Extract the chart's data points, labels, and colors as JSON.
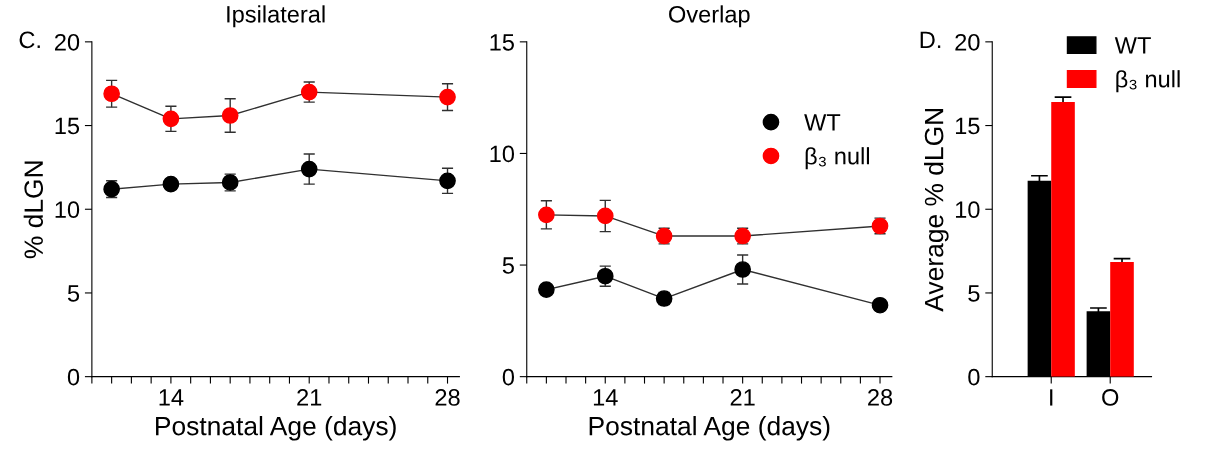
{
  "chart_data": [
    {
      "type": "line",
      "title": "Ipsilateral",
      "xlabel": "Postnatal Age (days)",
      "ylabel": "% dLGN",
      "annotations": [
        "C."
      ],
      "x": [
        11,
        14,
        17,
        21,
        28
      ],
      "xlim": [
        10,
        28.6
      ],
      "ylim": [
        0,
        20
      ],
      "yticks": [
        0,
        5,
        10,
        15,
        20
      ],
      "xticks": [
        {
          "value": 10,
          "label": null
        },
        {
          "value": 11,
          "label": null
        },
        {
          "value": 12,
          "label": null
        },
        {
          "value": 13,
          "label": null
        },
        14,
        {
          "value": 15,
          "label": null
        },
        {
          "value": 16,
          "label": null
        },
        {
          "value": 17,
          "label": null
        },
        {
          "value": 18,
          "label": null
        },
        {
          "value": 19,
          "label": null
        },
        {
          "value": 20,
          "label": null
        },
        21,
        {
          "value": 22,
          "label": null
        },
        {
          "value": 23,
          "label": null
        },
        {
          "value": 24,
          "label": null
        },
        {
          "value": 25,
          "label": null
        },
        {
          "value": 26,
          "label": null
        },
        {
          "value": 27,
          "label": null
        },
        28
      ],
      "marker": "circle",
      "grid": false,
      "legend": false,
      "series": [
        {
          "color": "#000000",
          "values": [
            11.2,
            11.5,
            11.6,
            12.4,
            11.7
          ],
          "errors": [
            0.5,
            0.3,
            0.5,
            0.9,
            0.75
          ]
        },
        {
          "color": "#ff0000",
          "values": [
            16.9,
            15.4,
            15.6,
            17.0,
            16.7
          ],
          "errors": [
            0.8,
            0.75,
            1.0,
            0.6,
            0.8
          ]
        }
      ]
    },
    {
      "type": "line",
      "title": "Overlap",
      "xlabel": "Postnatal Age (days)",
      "x": [
        11,
        14,
        17,
        21,
        28
      ],
      "xlim": [
        10,
        28.6
      ],
      "ylim": [
        0,
        15
      ],
      "yticks": [
        0,
        5,
        10,
        15
      ],
      "xticks": [
        {
          "value": 10,
          "label": null
        },
        {
          "value": 11,
          "label": null
        },
        {
          "value": 12,
          "label": null
        },
        {
          "value": 13,
          "label": null
        },
        14,
        {
          "value": 15,
          "label": null
        },
        {
          "value": 16,
          "label": null
        },
        {
          "value": 17,
          "label": null
        },
        {
          "value": 18,
          "label": null
        },
        {
          "value": 19,
          "label": null
        },
        {
          "value": 20,
          "label": null
        },
        21,
        {
          "value": 22,
          "label": null
        },
        {
          "value": 23,
          "label": null
        },
        {
          "value": 24,
          "label": null
        },
        {
          "value": 25,
          "label": null
        },
        {
          "value": 26,
          "label": null
        },
        {
          "value": 27,
          "label": null
        },
        28
      ],
      "marker": "circle",
      "grid": false,
      "legend": "top right",
      "series": [
        {
          "name": "WT",
          "color": "#000000",
          "values": [
            3.9,
            4.5,
            3.5,
            4.8,
            3.2
          ],
          "errors": [
            0.2,
            0.45,
            0.27,
            0.65,
            0.15
          ]
        },
        {
          "name": "β₃ null",
          "color": "#ff0000",
          "values": [
            7.25,
            7.2,
            6.3,
            6.3,
            6.75
          ],
          "errors": [
            0.63,
            0.7,
            0.35,
            0.35,
            0.35
          ]
        }
      ]
    },
    {
      "type": "bar",
      "ylabel": "Average % dLGN",
      "annotations": [
        "D."
      ],
      "categories": [
        "I",
        "O"
      ],
      "ylim": [
        0,
        20
      ],
      "yticks": [
        0,
        5,
        10,
        15,
        20
      ],
      "grid": false,
      "legend": "top right",
      "series": [
        {
          "name": "WT",
          "color": "#000000",
          "values": [
            11.7,
            3.9
          ],
          "errors": [
            0.3,
            0.2
          ]
        },
        {
          "name": "β₃ null",
          "color": "#ff0000",
          "values": [
            16.4,
            6.85
          ],
          "errors": [
            0.3,
            0.2
          ]
        }
      ]
    }
  ]
}
